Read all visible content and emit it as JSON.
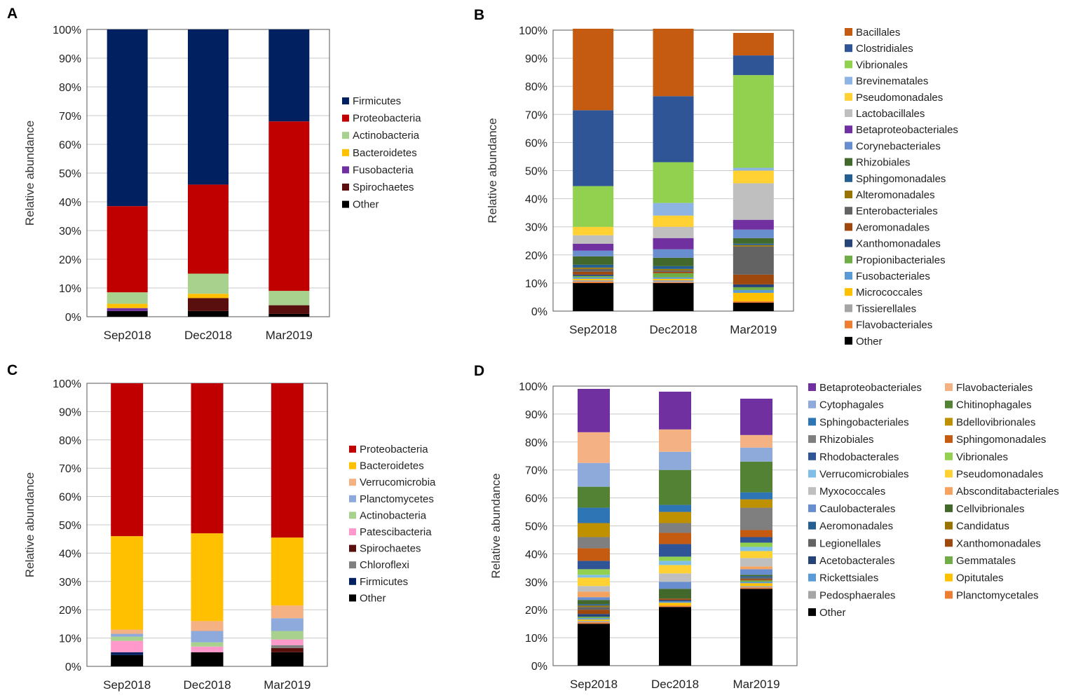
{
  "yticks": [
    "0%",
    "10%",
    "20%",
    "30%",
    "40%",
    "50%",
    "60%",
    "70%",
    "80%",
    "90%",
    "100%"
  ],
  "ylabel": "Relative abundance",
  "categories": [
    "Sep2018",
    "Dec2018",
    "Mar2019"
  ],
  "chart_data": [
    {
      "panel": "A",
      "type": "bar",
      "stacked": true,
      "ylim": [
        0,
        100
      ],
      "ylabel": "Relative abundance",
      "categories": [
        "Sep2018",
        "Dec2018",
        "Mar2019"
      ],
      "series": [
        {
          "name": "Other",
          "color": "#000000",
          "values": [
            2,
            2,
            1
          ]
        },
        {
          "name": "Spirochaetes",
          "color": "#5a0f0f",
          "values": [
            0,
            4.5,
            3
          ]
        },
        {
          "name": "Fusobacteria",
          "color": "#7030a0",
          "values": [
            1,
            0,
            0
          ]
        },
        {
          "name": "Bacteroidetes",
          "color": "#ffc000",
          "values": [
            1.5,
            1.5,
            0
          ]
        },
        {
          "name": "Actinobacteria",
          "color": "#a9d18e",
          "values": [
            4,
            7,
            5
          ]
        },
        {
          "name": "Proteobacteria",
          "color": "#c00000",
          "values": [
            30,
            31,
            59
          ]
        },
        {
          "name": "Firmicutes",
          "color": "#002060",
          "values": [
            61.5,
            54,
            32
          ]
        }
      ],
      "legend": [
        "Firmicutes",
        "Proteobacteria",
        "Actinobacteria",
        "Bacteroidetes",
        "Fusobacteria",
        "Spirochaetes",
        "Other"
      ]
    },
    {
      "panel": "B",
      "type": "bar",
      "stacked": true,
      "ylim": [
        0,
        100
      ],
      "ylabel": "Relative abundance",
      "categories": [
        "Sep2018",
        "Dec2018",
        "Mar2019"
      ],
      "series": [
        {
          "name": "Other",
          "color": "#000000",
          "values": [
            10,
            10,
            3
          ]
        },
        {
          "name": "Flavobacteriales",
          "color": "#ed7d31",
          "values": [
            0.5,
            0.3,
            0.5
          ]
        },
        {
          "name": "Tissierellales",
          "color": "#a5a5a5",
          "values": [
            0.5,
            0.7,
            0
          ]
        },
        {
          "name": "Micrococcales",
          "color": "#ffc000",
          "values": [
            0.5,
            0.5,
            3
          ]
        },
        {
          "name": "Fusobacteriales",
          "color": "#5b9bd5",
          "values": [
            0.5,
            0.5,
            1
          ]
        },
        {
          "name": "Propionibacteriales",
          "color": "#70ad47",
          "values": [
            0.5,
            1.5,
            1
          ]
        },
        {
          "name": "Xanthomonadales",
          "color": "#264478",
          "values": [
            0.5,
            0,
            1
          ]
        },
        {
          "name": "Aeromonadales",
          "color": "#9e480e",
          "values": [
            1,
            0.5,
            3.5
          ]
        },
        {
          "name": "Enterobacteriales",
          "color": "#636363",
          "values": [
            1,
            0.5,
            10
          ]
        },
        {
          "name": "Alteromonadales",
          "color": "#997300",
          "values": [
            0.5,
            0.5,
            0.5
          ]
        },
        {
          "name": "Sphingomonadales",
          "color": "#255e91",
          "values": [
            1,
            1,
            0.5
          ]
        },
        {
          "name": "Rhizobiales",
          "color": "#43682b",
          "values": [
            3,
            3,
            2
          ]
        },
        {
          "name": "Corynebacteriales",
          "color": "#698ed0",
          "values": [
            2,
            3,
            3
          ]
        },
        {
          "name": "Betaproteobacteriales",
          "color": "#7030a0",
          "values": [
            2.5,
            4,
            3.5
          ]
        },
        {
          "name": "Lactobacillales",
          "color": "#bfbfbf",
          "values": [
            3,
            4,
            13
          ]
        },
        {
          "name": "Pseudomonadales",
          "color": "#ffd133",
          "values": [
            3,
            4,
            4.5
          ]
        },
        {
          "name": "Brevinematales",
          "color": "#8db4e2",
          "values": [
            0,
            4.5,
            1
          ]
        },
        {
          "name": "Vibrionales",
          "color": "#92d050",
          "values": [
            14.5,
            14.5,
            33
          ]
        },
        {
          "name": "Clostridiales",
          "color": "#2f5597",
          "values": [
            27,
            23.5,
            7
          ]
        },
        {
          "name": "Bacillales",
          "color": "#c55a11",
          "values": [
            29,
            24,
            8
          ]
        }
      ],
      "legend": [
        "Bacillales",
        "Clostridiales",
        "Vibrionales",
        "Brevinematales",
        "Pseudomonadales",
        "Lactobacillales",
        "Betaproteobacteriales",
        "Corynebacteriales",
        "Rhizobiales",
        "Sphingomonadales",
        "Alteromonadales",
        "Enterobacteriales",
        "Aeromonadales",
        "Xanthomonadales",
        "Propionibacteriales",
        "Fusobacteriales",
        "Micrococcales",
        "Tissierellales",
        "Flavobacteriales",
        "Other"
      ]
    },
    {
      "panel": "C",
      "type": "bar",
      "stacked": true,
      "ylim": [
        0,
        100
      ],
      "ylabel": "Relative abundance",
      "categories": [
        "Sep2018",
        "Dec2018",
        "Mar2019"
      ],
      "series": [
        {
          "name": "Other",
          "color": "#000000",
          "values": [
            4,
            5,
            5
          ]
        },
        {
          "name": "Firmicutes",
          "color": "#002060",
          "values": [
            1,
            0,
            0
          ]
        },
        {
          "name": "Spirochaetes",
          "color": "#5a0f0f",
          "values": [
            0,
            0,
            1.5
          ]
        },
        {
          "name": "Chloroflexi",
          "color": "#808080",
          "values": [
            0,
            0,
            1
          ]
        },
        {
          "name": "Patescibacteria",
          "color": "#ff99cc",
          "values": [
            4,
            2,
            2
          ]
        },
        {
          "name": "Actinobacteria",
          "color": "#a9d18e",
          "values": [
            1.5,
            1.5,
            3
          ]
        },
        {
          "name": "Planctomycetes",
          "color": "#8ea9db",
          "values": [
            1,
            4,
            4.5
          ]
        },
        {
          "name": "Verrucomicrobia",
          "color": "#f4b183",
          "values": [
            1.5,
            3.5,
            4.5
          ]
        },
        {
          "name": "Bacteroidetes",
          "color": "#ffc000",
          "values": [
            33,
            31,
            24
          ]
        },
        {
          "name": "Proteobacteria",
          "color": "#c00000",
          "values": [
            54,
            53,
            54.5
          ]
        }
      ],
      "legend": [
        "Proteobacteria",
        "Bacteroidetes",
        "Verrucomicrobia",
        "Planctomycetes",
        "Actinobacteria",
        "Patescibacteria",
        "Spirochaetes",
        "Chloroflexi",
        "Firmicutes",
        "Other"
      ]
    },
    {
      "panel": "D",
      "type": "bar",
      "stacked": true,
      "ylim": [
        0,
        100
      ],
      "ylabel": "Relative abundance",
      "categories": [
        "Sep2018",
        "Dec2018",
        "Mar2019"
      ],
      "series": [
        {
          "name": "Other",
          "color": "#000000",
          "values": [
            15,
            21,
            27.5
          ]
        },
        {
          "name": "Planctomycetales",
          "color": "#ed7d31",
          "values": [
            0.5,
            0.5,
            0.5
          ]
        },
        {
          "name": "Pedosphaerales",
          "color": "#a5a5a5",
          "values": [
            0.5,
            0,
            0.5
          ]
        },
        {
          "name": "Opitutales",
          "color": "#ffc000",
          "values": [
            0.5,
            1,
            1
          ]
        },
        {
          "name": "Rickettsiales",
          "color": "#5b9bd5",
          "values": [
            0.5,
            0.5,
            0.5
          ]
        },
        {
          "name": "Gemmatales",
          "color": "#70ad47",
          "values": [
            0.5,
            0,
            0.5
          ]
        },
        {
          "name": "Acetobacterales",
          "color": "#264478",
          "values": [
            1,
            0.5,
            0
          ]
        },
        {
          "name": "Xanthomonadales",
          "color": "#9e480e",
          "values": [
            1.5,
            0.5,
            0.5
          ]
        },
        {
          "name": "Legionellales",
          "color": "#636363",
          "values": [
            1,
            0,
            0.5
          ]
        },
        {
          "name": "Candidatus",
          "color": "#997300",
          "values": [
            0.5,
            0,
            0
          ]
        },
        {
          "name": "Aeromonadales",
          "color": "#255e91",
          "values": [
            0.5,
            0,
            0.5
          ]
        },
        {
          "name": "Cellvibrionales",
          "color": "#43682b",
          "values": [
            1.5,
            3.5,
            0.5
          ]
        },
        {
          "name": "Caulobacterales",
          "color": "#698ed0",
          "values": [
            1,
            2.5,
            2
          ]
        },
        {
          "name": "Absconditabacteriales",
          "color": "#f4a460",
          "values": [
            2,
            0,
            1
          ]
        },
        {
          "name": "Myxococcales",
          "color": "#bfbfbf",
          "values": [
            2,
            3,
            3
          ]
        },
        {
          "name": "Pseudomonadales",
          "color": "#ffd133",
          "values": [
            3,
            3,
            2.5
          ]
        },
        {
          "name": "Verrucomicrobiales",
          "color": "#7fbfe5",
          "values": [
            1,
            1.5,
            1.5
          ]
        },
        {
          "name": "Vibrionales",
          "color": "#92d050",
          "values": [
            2,
            1.5,
            1.5
          ]
        },
        {
          "name": "Rhodobacterales",
          "color": "#2f5597",
          "values": [
            3,
            4.5,
            2
          ]
        },
        {
          "name": "Sphingomonadales",
          "color": "#c55a11",
          "values": [
            4.5,
            4,
            2.5
          ]
        },
        {
          "name": "Rhizobiales",
          "color": "#7f7f7f",
          "values": [
            4,
            3.5,
            8
          ]
        },
        {
          "name": "Bdellovibrionales",
          "color": "#bf9000",
          "values": [
            5,
            4,
            3
          ]
        },
        {
          "name": "Sphingobacteriales",
          "color": "#2e75b6",
          "values": [
            5.5,
            2.5,
            2.5
          ]
        },
        {
          "name": "Chitinophagales",
          "color": "#548235",
          "values": [
            7.5,
            12.5,
            11
          ]
        },
        {
          "name": "Cytophagales",
          "color": "#8eaadb",
          "values": [
            8.5,
            6.5,
            5
          ]
        },
        {
          "name": "Flavobacteriales",
          "color": "#f4b183",
          "values": [
            11,
            8,
            4.5
          ]
        },
        {
          "name": "Betaproteobacteriales",
          "color": "#7030a0",
          "values": [
            15.5,
            13.5,
            13
          ]
        }
      ],
      "legend": [
        "Betaproteobacteriales",
        "Flavobacteriales",
        "Cytophagales",
        "Chitinophagales",
        "Sphingobacteriales",
        "Bdellovibrionales",
        "Rhizobiales",
        "Sphingomonadales",
        "Rhodobacterales",
        "Vibrionales",
        "Verrucomicrobiales",
        "Pseudomonadales",
        "Myxococcales",
        "Absconditabacteriales",
        "Caulobacterales",
        "Cellvibrionales",
        "Aeromonadales",
        "Candidatus",
        "Legionellales",
        "Xanthomonadales",
        "Acetobacterales",
        "Gemmatales",
        "Rickettsiales",
        "Opitutales",
        "Pedosphaerales",
        "Planctomycetales",
        "Other"
      ]
    }
  ]
}
